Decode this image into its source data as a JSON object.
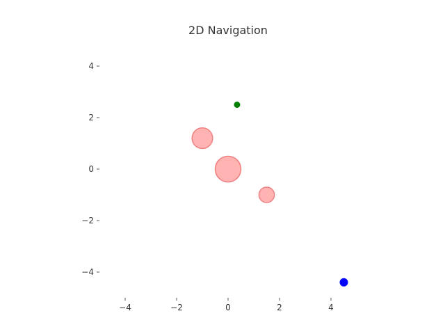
{
  "chart_data": {
    "type": "scatter",
    "title": "2D Navigation",
    "xlabel": "",
    "ylabel": "",
    "xlim": [
      -5,
      5
    ],
    "ylim": [
      -5,
      5
    ],
    "xticks": [
      -4,
      -2,
      0,
      2,
      4
    ],
    "yticks": [
      -4,
      -2,
      0,
      2,
      4
    ],
    "xtick_labels": [
      "−4",
      "−2",
      "0",
      "2",
      "4"
    ],
    "ytick_labels": [
      "−4",
      "−2",
      "0",
      "2",
      "4"
    ],
    "grid": false,
    "obstacles": {
      "color": "#ff9999",
      "points": [
        {
          "x": 0.0,
          "y": 0.0,
          "r": 0.5
        },
        {
          "x": -1.0,
          "y": 1.2,
          "r": 0.4
        },
        {
          "x": 1.5,
          "y": -1.0,
          "r": 0.3
        }
      ]
    },
    "goal": {
      "color": "#008000",
      "x": 0.35,
      "y": 2.5
    },
    "agent": {
      "color": "#0000ff",
      "x": 4.5,
      "y": -4.4
    }
  }
}
